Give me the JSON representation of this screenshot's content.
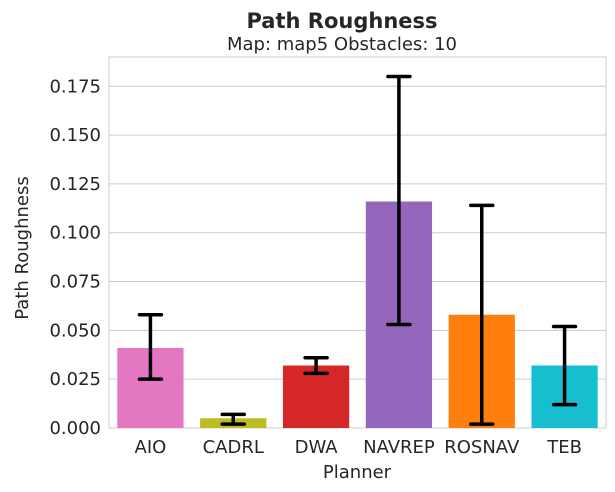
{
  "chart_data": {
    "type": "bar",
    "title": "Path Roughness",
    "subtitle": "Map: map5 Obstacles: 10",
    "xlabel": "Planner",
    "ylabel": "Path Roughness",
    "categories": [
      "AIO",
      "CADRL",
      "DWA",
      "NAVREP",
      "ROSNAV",
      "TEB"
    ],
    "values": [
      0.041,
      0.005,
      0.032,
      0.116,
      0.058,
      0.032
    ],
    "error_low": [
      0.025,
      0.002,
      0.028,
      0.053,
      0.002,
      0.012
    ],
    "error_high": [
      0.058,
      0.007,
      0.036,
      0.18,
      0.114,
      0.052
    ],
    "colors": [
      "#e377c2",
      "#bcbd22",
      "#d62728",
      "#9467bd",
      "#ff7f0e",
      "#17becf"
    ],
    "ylim": [
      0,
      0.19
    ],
    "yticks": [
      0.0,
      0.025,
      0.05,
      0.075,
      0.1,
      0.125,
      0.15,
      0.175
    ],
    "ytick_labels": [
      "0.000",
      "0.025",
      "0.050",
      "0.075",
      "0.100",
      "0.125",
      "0.150",
      "0.175"
    ],
    "grid": true,
    "grid_axis": "y"
  }
}
